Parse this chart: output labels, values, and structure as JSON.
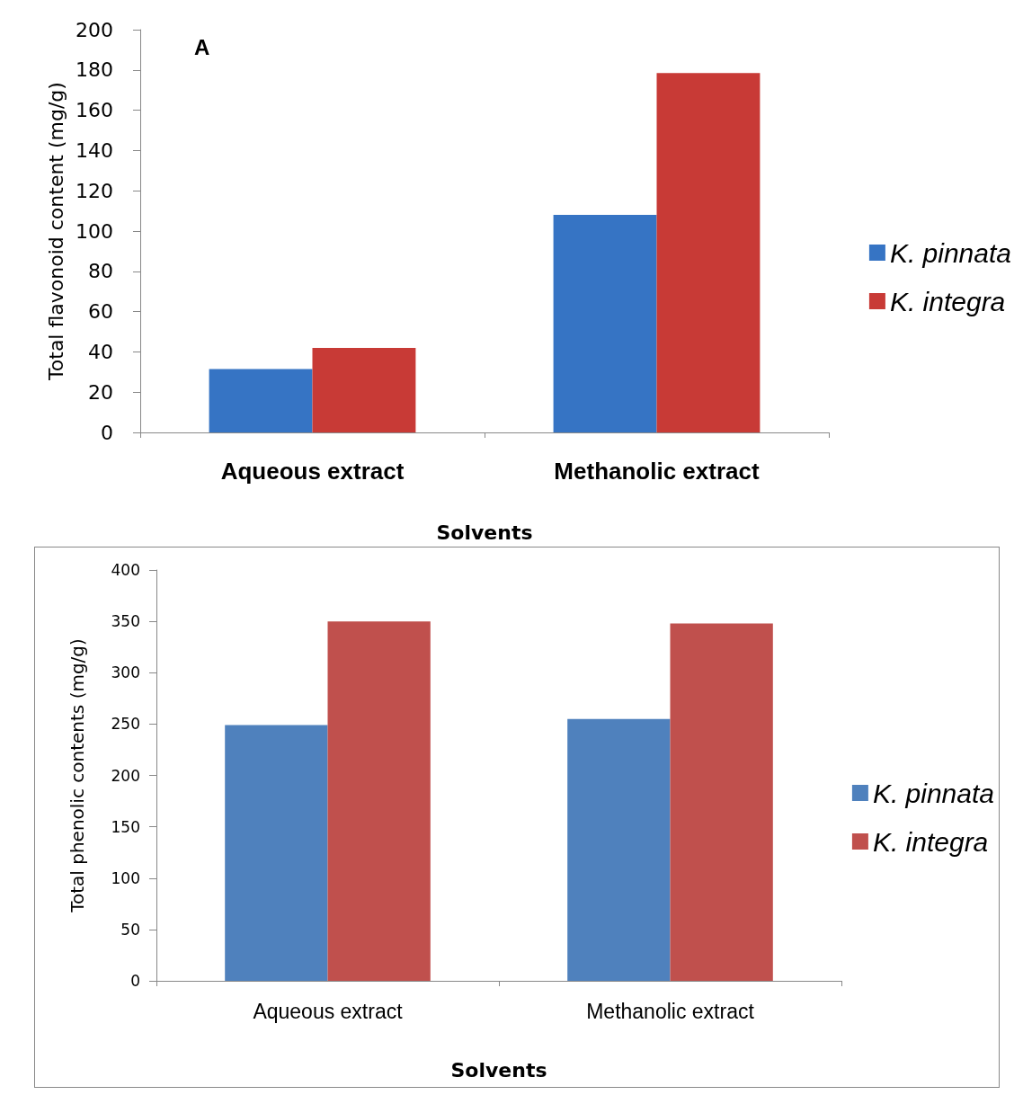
{
  "chart_data": [
    {
      "type": "bar",
      "xlabel": "Solvents",
      "ylabel": "Total flavonoid content (mg/g)",
      "annotations": [
        "A"
      ],
      "categories": [
        "Aqueous extract",
        "Methanolic extract"
      ],
      "series": [
        {
          "name": "K. pinnata",
          "color": "#3674c4",
          "values": [
            31.5,
            108
          ]
        },
        {
          "name": "K. integra",
          "color": "#c83a36",
          "values": [
            42,
            178.5
          ]
        }
      ],
      "ylim": [
        0,
        200
      ],
      "yticks": [
        0,
        20,
        40,
        60,
        80,
        100,
        120,
        140,
        160,
        180,
        200
      ],
      "legend": "right"
    },
    {
      "type": "bar",
      "xlabel": "Solvents",
      "ylabel": "Total phenolic contents (mg/g)",
      "categories": [
        "Aqueous extract",
        "Methanolic extract"
      ],
      "series": [
        {
          "name": "K. pinnata",
          "color": "#4f81bd",
          "values": [
            249,
            255
          ]
        },
        {
          "name": "K. integra",
          "color": "#c0504d",
          "values": [
            350,
            348
          ]
        }
      ],
      "ylim": [
        0,
        400
      ],
      "yticks": [
        0,
        50,
        100,
        150,
        200,
        250,
        300,
        350,
        400
      ],
      "legend": "right"
    }
  ]
}
